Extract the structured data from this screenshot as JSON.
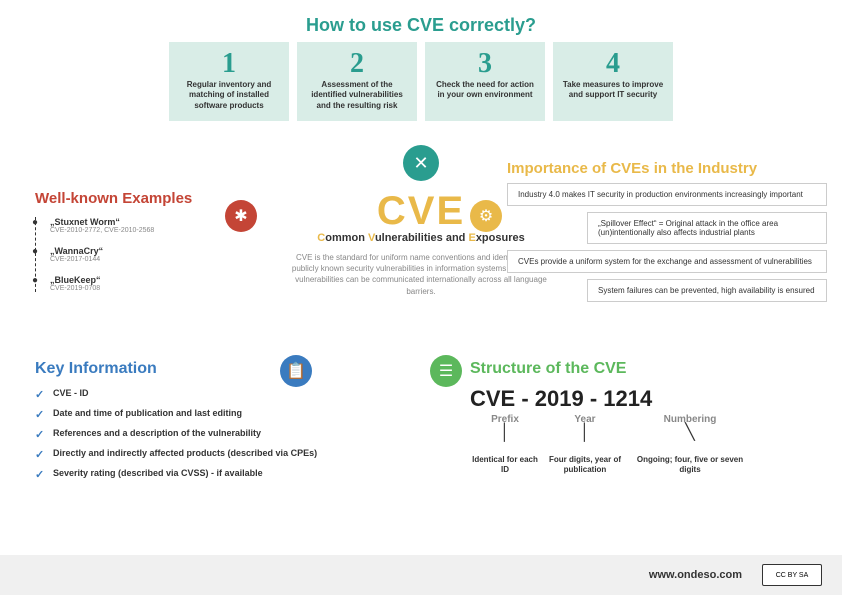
{
  "top": {
    "title": "How to use CVE correctly?",
    "title_color": "#2a9d8f",
    "steps": [
      {
        "num": "1",
        "text": "Regular inventory and matching of installed software products"
      },
      {
        "num": "2",
        "text": "Assessment of the identified vulnerabilities and the resulting risk"
      },
      {
        "num": "3",
        "text": "Check the need for action in your own environment"
      },
      {
        "num": "4",
        "text": "Take measures to improve and support IT security"
      }
    ],
    "step_bg": "#d9ede7"
  },
  "center": {
    "icon_glyph": "✕",
    "title": "CVE",
    "title_color": "#e9b949",
    "subtitle_parts": [
      "C",
      "ommon ",
      "V",
      "ulnerabilities and ",
      "E",
      "xposures"
    ],
    "desc": "CVE is the standard for uniform name conventions and identification of publicly known security vulnerabilities in information systems. In this way, vulnerabilities can be communicated internationally across all language barriers."
  },
  "examples": {
    "title": "Well-known Examples",
    "title_color": "#c44536",
    "icon_glyph": "✱",
    "items": [
      {
        "name": "„Stuxnet Worm“",
        "id": "CVE-2010-2772, CVE-2010-2568"
      },
      {
        "name": "„WannaCry“",
        "id": "CVE-2017-0144"
      },
      {
        "name": "„BlueKeep“",
        "id": "CVE-2019-0708"
      }
    ]
  },
  "importance": {
    "title": "Importance of CVEs in the Industry",
    "title_color": "#e9b949",
    "icon_glyph": "⚙",
    "boxes": [
      {
        "text": "Industry 4.0 makes IT security in production environments increasingly important",
        "indent": 0,
        "highlights": [
          "IT security in production"
        ]
      },
      {
        "text": "„Spillover Effect“ = Original attack in the office area (un)intentionally also affects industrial plants",
        "indent": 2,
        "highlights": []
      },
      {
        "text": "CVEs provide a uniform system for the exchange and assessment of vulnerabilities",
        "indent": 0,
        "highlights": [
          "uniform system"
        ]
      },
      {
        "text": "System failures can be prevented, high availability is ensured",
        "indent": 2,
        "highlights": [
          "high availability"
        ]
      }
    ]
  },
  "key": {
    "title": "Key Information",
    "title_color": "#3a7bbf",
    "icon_glyph": "📋",
    "items": [
      "CVE - ID",
      "Date and time of publication and last editing",
      "References and a description of the vulnerability",
      "Directly and indirectly affected products (described via CPEs)",
      "Severity rating (described via CVSS) - if available"
    ]
  },
  "structure": {
    "title": "Structure of the CVE",
    "title_color": "#5cb85c",
    "icon_glyph": "☰",
    "example": "CVE - 2019 - 1214",
    "parts": [
      {
        "label": "Prefix",
        "desc": "Identical for each ID"
      },
      {
        "label": "Year",
        "desc": "Four digits, year of publication"
      },
      {
        "label": "Numbering",
        "desc": "Ongoing; four, five or seven digits"
      }
    ]
  },
  "footer": {
    "url": "www.ondeso.com",
    "license": "CC BY SA"
  }
}
